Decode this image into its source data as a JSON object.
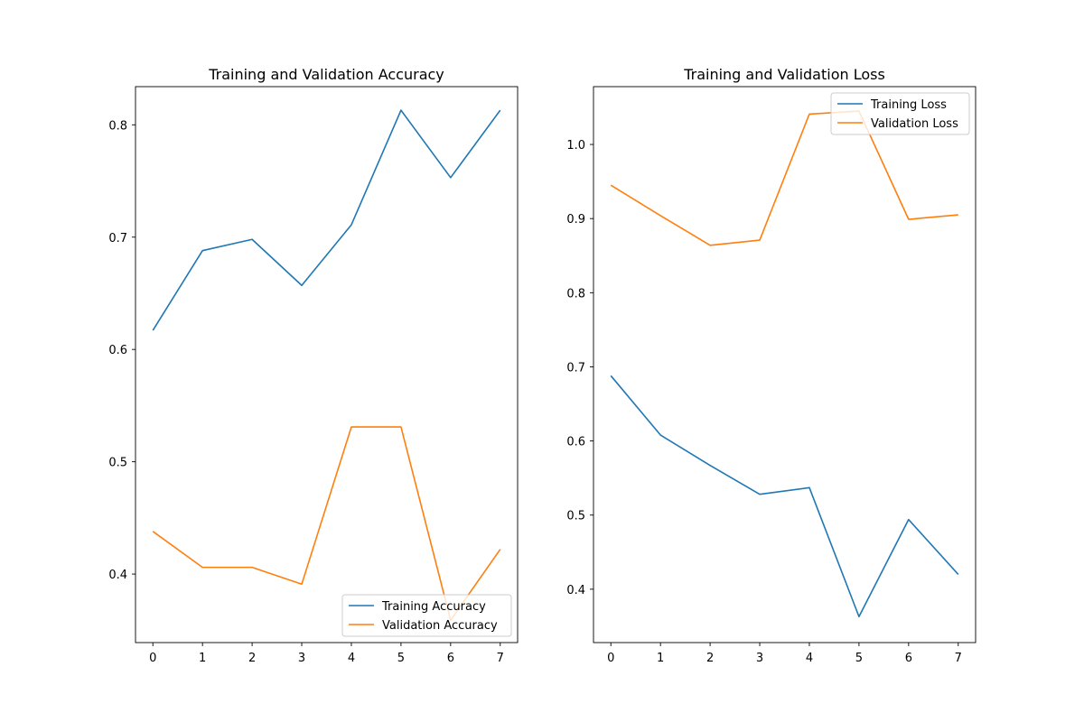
{
  "chart_data": [
    {
      "type": "line",
      "title": "Training and Validation Accuracy",
      "xlabel": "",
      "ylabel": "",
      "x": [
        0,
        1,
        2,
        3,
        4,
        5,
        6,
        7
      ],
      "xlim": [
        -0.35,
        7.35
      ],
      "ylim": [
        0.339,
        0.834
      ],
      "xticks": [
        0,
        1,
        2,
        3,
        4,
        5,
        6,
        7
      ],
      "yticks": [
        0.4,
        0.5,
        0.6,
        0.7,
        0.8
      ],
      "grid": false,
      "legend_position": "lower-right",
      "series": [
        {
          "name": "Training Accuracy",
          "color": "#1f77b4",
          "values": [
            0.617,
            0.688,
            0.698,
            0.657,
            0.711,
            0.813,
            0.753,
            0.813
          ]
        },
        {
          "name": "Validation Accuracy",
          "color": "#ff7f0e",
          "values": [
            0.438,
            0.406,
            0.406,
            0.391,
            0.531,
            0.531,
            0.359,
            0.422
          ]
        }
      ]
    },
    {
      "type": "line",
      "title": "Training and Validation Loss",
      "xlabel": "",
      "ylabel": "",
      "x": [
        0,
        1,
        2,
        3,
        4,
        5,
        6,
        7
      ],
      "xlim": [
        -0.35,
        7.35
      ],
      "ylim": [
        0.328,
        1.078
      ],
      "xticks": [
        0,
        1,
        2,
        3,
        4,
        5,
        6,
        7
      ],
      "yticks": [
        0.4,
        0.5,
        0.6,
        0.7,
        0.8,
        0.9,
        1.0
      ],
      "grid": false,
      "legend_position": "upper-right",
      "series": [
        {
          "name": "Training Loss",
          "color": "#1f77b4",
          "values": [
            0.688,
            0.608,
            0.567,
            0.528,
            0.537,
            0.363,
            0.494,
            0.42
          ]
        },
        {
          "name": "Validation Loss",
          "color": "#ff7f0e",
          "values": [
            0.945,
            0.904,
            0.864,
            0.871,
            1.041,
            1.045,
            0.899,
            0.905
          ]
        }
      ]
    }
  ]
}
